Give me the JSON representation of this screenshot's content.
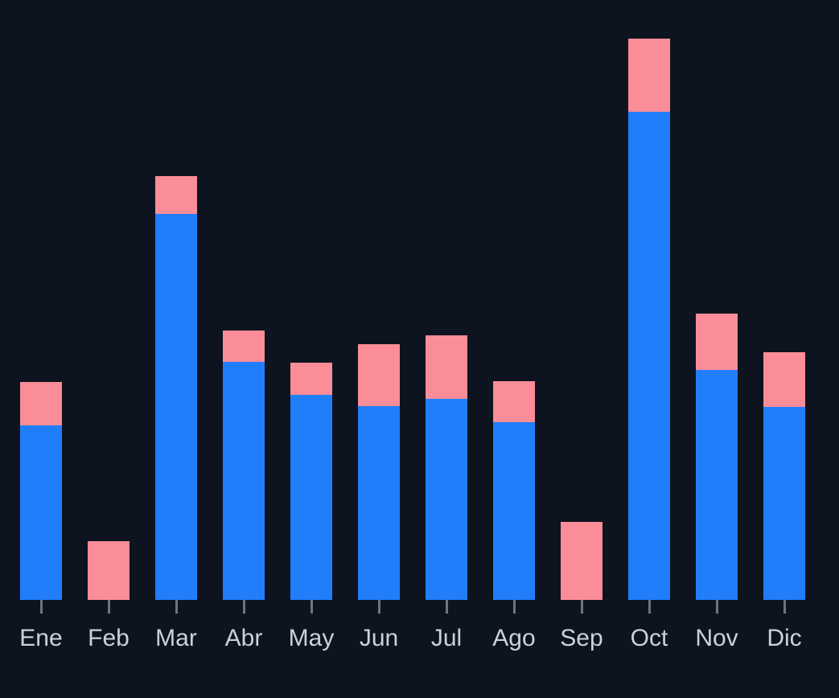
{
  "chart_data": {
    "type": "bar",
    "stacked": true,
    "title": "",
    "xlabel": "",
    "ylabel": "",
    "categories": [
      "Ene",
      "Feb",
      "Mar",
      "Abr",
      "May",
      "Jun",
      "Jul",
      "Ago",
      "Sep",
      "Oct",
      "Nov",
      "Dic"
    ],
    "series": [
      {
        "name": "blue",
        "color": "#217efa",
        "values": [
          31.0,
          0,
          68.7,
          42.3,
          36.5,
          34.5,
          35.8,
          31.6,
          0,
          86.8,
          40.9,
          34.3
        ]
      },
      {
        "name": "pink",
        "color": "#fa8d97",
        "values": [
          7.7,
          10.4,
          6.7,
          5.6,
          5.7,
          11.0,
          11.3,
          7.3,
          13.9,
          13.0,
          10.0,
          9.7
        ]
      }
    ],
    "ylim": [
      0,
      100
    ],
    "grid": false,
    "legend": "none",
    "axis": {
      "tick_color": "#6f757d",
      "label_color": "#cdd1d6",
      "label_font_size_px": 30
    },
    "background": "#0d141f"
  }
}
